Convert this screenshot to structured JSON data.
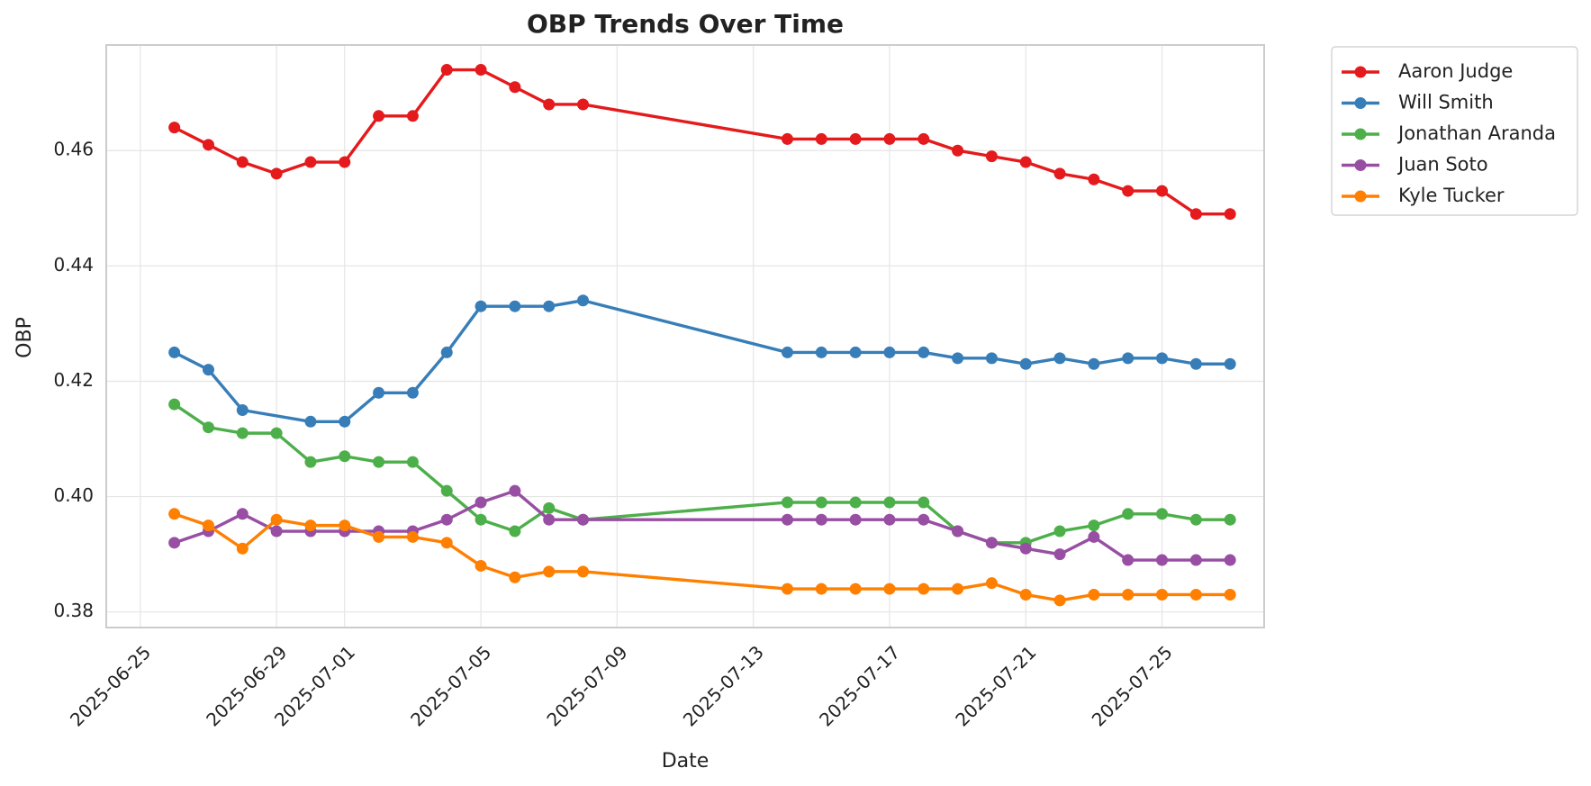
{
  "chart_data": {
    "type": "line",
    "title": "OBP Trends Over Time",
    "xlabel": "Date",
    "ylabel": "OBP",
    "x_axis": {
      "kind": "date",
      "range": [
        "2025-06-24",
        "2025-07-28"
      ],
      "ticks": [
        "2025-06-25",
        "2025-06-29",
        "2025-07-01",
        "2025-07-05",
        "2025-07-09",
        "2025-07-13",
        "2025-07-17",
        "2025-07-21",
        "2025-07-25"
      ],
      "tick_rotation": 45
    },
    "y_axis": {
      "range": [
        0.3773,
        0.4783
      ],
      "ticks": [
        "0.38",
        "0.40",
        "0.42",
        "0.44",
        "0.46"
      ]
    },
    "grid": true,
    "legend_position": "outside-top-right",
    "x": [
      "2025-06-26",
      "2025-06-27",
      "2025-06-28",
      "2025-06-29",
      "2025-06-30",
      "2025-07-01",
      "2025-07-02",
      "2025-07-03",
      "2025-07-04",
      "2025-07-05",
      "2025-07-06",
      "2025-07-07",
      "2025-07-08",
      "2025-07-14",
      "2025-07-15",
      "2025-07-16",
      "2025-07-17",
      "2025-07-18",
      "2025-07-19",
      "2025-07-20",
      "2025-07-21",
      "2025-07-22",
      "2025-07-23",
      "2025-07-24",
      "2025-07-25",
      "2025-07-26",
      "2025-07-27"
    ],
    "series": [
      {
        "name": "Aaron Judge",
        "color": "#e41a1c",
        "values": [
          0.464,
          0.461,
          0.458,
          0.456,
          0.458,
          0.458,
          0.466,
          0.466,
          0.474,
          0.474,
          0.471,
          0.468,
          0.468,
          0.462,
          0.462,
          0.462,
          0.462,
          0.462,
          0.46,
          0.459,
          0.458,
          0.456,
          0.455,
          0.453,
          0.453,
          0.449,
          0.449
        ]
      },
      {
        "name": "Will Smith",
        "color": "#377eb8",
        "values": [
          0.425,
          0.422,
          0.415,
          null,
          0.413,
          0.413,
          0.418,
          0.418,
          0.425,
          0.433,
          0.433,
          0.433,
          0.434,
          0.425,
          0.425,
          0.425,
          0.425,
          0.425,
          0.424,
          0.424,
          0.423,
          0.424,
          0.423,
          0.424,
          0.424,
          0.423,
          0.423
        ]
      },
      {
        "name": "Jonathan Aranda",
        "color": "#4daf4a",
        "values": [
          0.416,
          0.412,
          0.411,
          0.411,
          0.406,
          0.407,
          0.406,
          0.406,
          0.401,
          0.396,
          0.394,
          0.398,
          0.396,
          0.399,
          0.399,
          0.399,
          0.399,
          0.399,
          0.394,
          0.392,
          0.392,
          0.394,
          0.395,
          0.397,
          0.397,
          0.396,
          0.396
        ]
      },
      {
        "name": "Juan Soto",
        "color": "#984ea3",
        "values": [
          0.392,
          0.394,
          0.397,
          0.394,
          0.394,
          0.394,
          0.394,
          0.394,
          0.396,
          0.399,
          0.401,
          0.396,
          0.396,
          0.396,
          0.396,
          0.396,
          0.396,
          0.396,
          0.394,
          0.392,
          0.391,
          0.39,
          0.393,
          0.389,
          0.389,
          0.389,
          0.389
        ]
      },
      {
        "name": "Kyle Tucker",
        "color": "#ff7f00",
        "values": [
          0.397,
          0.395,
          0.391,
          0.396,
          0.395,
          0.395,
          0.393,
          0.393,
          0.392,
          0.388,
          0.386,
          0.387,
          0.387,
          0.384,
          0.384,
          0.384,
          0.384,
          0.384,
          0.384,
          0.385,
          0.383,
          0.382,
          0.383,
          0.383,
          0.383,
          0.383,
          0.383
        ]
      }
    ]
  }
}
